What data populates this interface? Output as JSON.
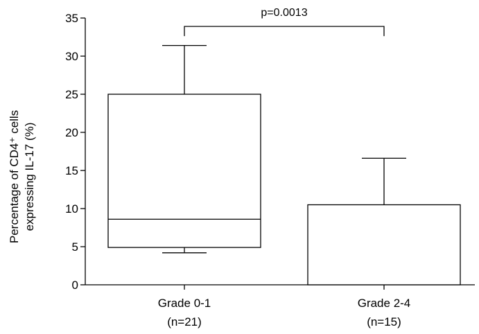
{
  "chart_data": {
    "type": "box",
    "ylabel_line1": "Percentage of CD4⁺ cells",
    "ylabel_line2": "expressing IL-17 (%)",
    "xlabel": "",
    "ylim": [
      0,
      35
    ],
    "y_ticks": [
      0,
      5,
      10,
      15,
      20,
      25,
      30,
      35
    ],
    "grid": false,
    "legend": "none",
    "groups": [
      {
        "label_line1": "Grade 0-1",
        "label_line2": "(n=21)",
        "min": 4.2,
        "q1": 4.9,
        "median": 8.6,
        "q3": 25.0,
        "max": 31.4
      },
      {
        "label_line1": "Grade 2-4",
        "label_line2": "(n=15)",
        "min": 0,
        "q1": 0,
        "median": 0,
        "q3": 10.5,
        "max": 16.6
      }
    ],
    "comparison": {
      "text": "p=0.0013",
      "level": 33.9,
      "from_group": 0,
      "to_group": 1
    }
  }
}
